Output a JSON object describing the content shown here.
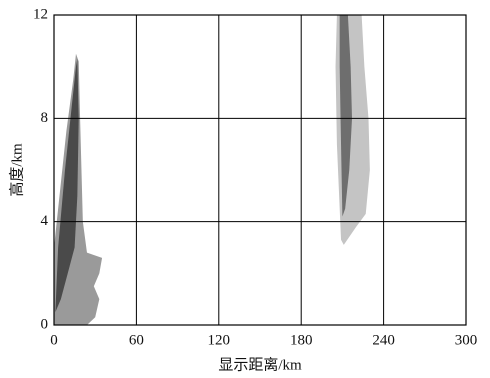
{
  "chart_data": {
    "type": "polygon",
    "xlabel": "显示距离/km",
    "ylabel": "高度/km",
    "xlim": [
      0,
      300
    ],
    "xticks": [
      0,
      60,
      120,
      180,
      240,
      300
    ],
    "ylim": [
      0,
      12
    ],
    "yticks": [
      0,
      4,
      8,
      12
    ],
    "grid": true,
    "regions": [
      {
        "color": "#9a9a9a",
        "x": [
          0,
          0,
          4,
          9,
          14,
          16,
          18,
          19,
          20,
          21,
          24,
          35,
          33,
          29,
          33,
          30,
          24,
          0
        ],
        "y": [
          0,
          3,
          5,
          7.5,
          9.5,
          10.5,
          10.2,
          8,
          6,
          4,
          2.8,
          2.6,
          2,
          1.5,
          1,
          0.3,
          0,
          0
        ]
      },
      {
        "color": "#4a4a4a",
        "x": [
          1,
          3,
          8,
          13,
          16,
          17,
          18,
          17,
          15,
          10,
          5,
          1
        ],
        "y": [
          0.5,
          3,
          6,
          8.5,
          10,
          10.3,
          8,
          5,
          3,
          2,
          1,
          0.5
        ]
      },
      {
        "color": "#c4c4c4",
        "x": [
          206,
          224,
          226,
          229,
          230,
          227,
          220,
          211,
          209,
          206,
          205
        ],
        "y": [
          12,
          12,
          10,
          8,
          6,
          4.3,
          3.8,
          3.1,
          3.3,
          7,
          10
        ]
      },
      {
        "color": "#6e6e6e",
        "x": [
          208,
          214,
          216,
          217,
          215,
          212,
          210,
          209,
          208
        ],
        "y": [
          12,
          12,
          10,
          8,
          6,
          4.5,
          4.2,
          7,
          10
        ]
      }
    ]
  }
}
